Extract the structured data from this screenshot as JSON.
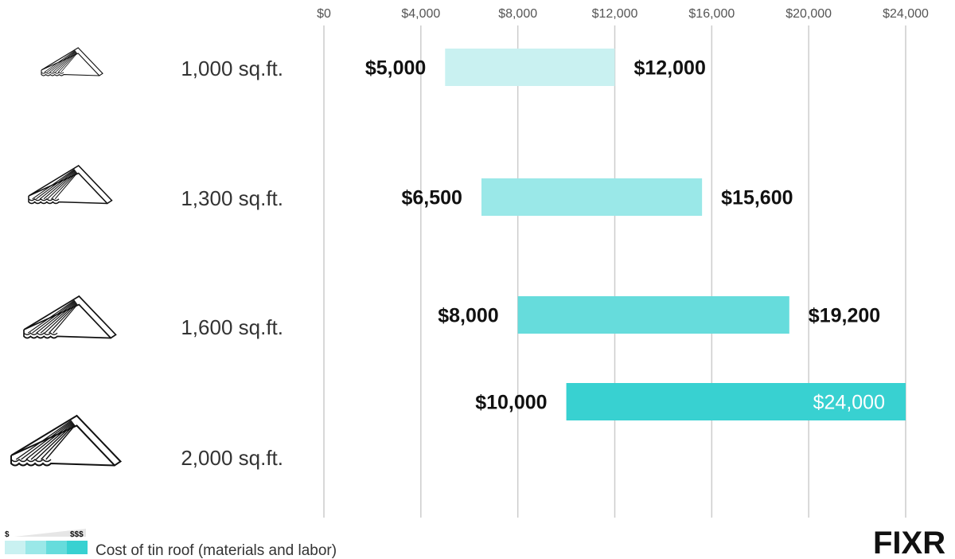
{
  "chart_data": {
    "type": "bar",
    "orientation": "horizontal-range",
    "x_ticks": [
      0,
      4000,
      8000,
      12000,
      16000,
      20000,
      24000
    ],
    "x_tick_labels": [
      "$0",
      "$4,000",
      "$8,000",
      "$12,000",
      "$16,000",
      "$20,000",
      "$24,000"
    ],
    "xlim": [
      0,
      24000
    ],
    "grid": "vertical",
    "categories": [
      "1,000 sq.ft.",
      "1,300 sq.ft.",
      "1,600 sq.ft.",
      "2,000 sq.ft."
    ],
    "ranges": [
      {
        "low": 5000,
        "high": 12000,
        "low_label": "$5,000",
        "high_label": "$12,000",
        "color": "#c9f1f1"
      },
      {
        "low": 6500,
        "high": 15600,
        "low_label": "$6,500",
        "high_label": "$15,600",
        "color": "#9ae8e8"
      },
      {
        "low": 8000,
        "high": 19200,
        "low_label": "$8,000",
        "high_label": "$19,200",
        "color": "#66dcdc"
      },
      {
        "low": 10000,
        "high": 24000,
        "low_label": "$10,000",
        "high_label": "$24,000",
        "color": "#38d1d1"
      }
    ],
    "legend": {
      "placement": "bottom-left",
      "low_marker": "$",
      "high_marker": "$$$",
      "text": "Cost of tin roof (materials and labor)",
      "swatches": [
        "#c9f1f1",
        "#9ae8e8",
        "#66dcdc",
        "#38d1d1"
      ]
    }
  },
  "icons": [
    "roof-icon",
    "roof-icon",
    "roof-icon",
    "roof-icon"
  ],
  "logo": {
    "text": "FIXR"
  }
}
